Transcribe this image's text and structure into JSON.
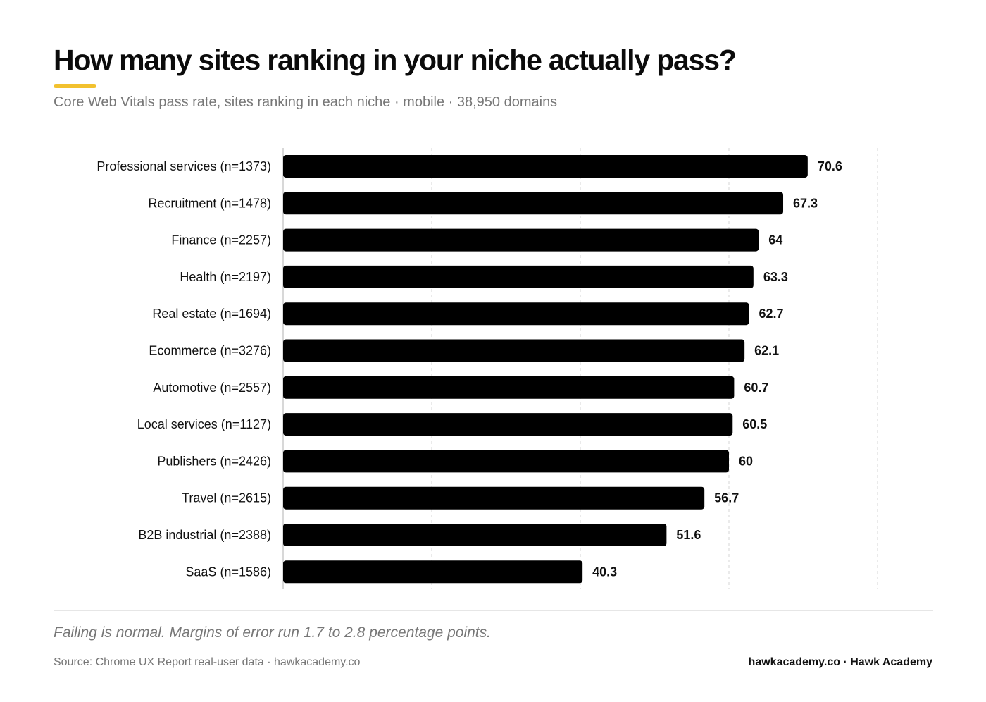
{
  "header": {
    "title": "How many sites ranking in your niche actually pass?",
    "subtitle": "Core Web Vitals pass rate, sites ranking in each niche · mobile · 38,950 domains"
  },
  "footer": {
    "note": "Failing is normal. Margins of error run 1.7 to 2.8 percentage points.",
    "source": "Source: Chrome UX Report real-user data · hawkacademy.co",
    "brand": "hawkacademy.co · Hawk Academy"
  },
  "colors": {
    "bar": "#000000",
    "accent": "#f2c12e",
    "gridline": "#d6d6d6",
    "axis": "#cccccc"
  },
  "chart_data": {
    "type": "bar",
    "orientation": "horizontal",
    "categories": [
      "Professional services (n=1373)",
      "Recruitment (n=1478)",
      "Finance (n=2257)",
      "Health (n=2197)",
      "Real estate (n=1694)",
      "Ecommerce (n=3276)",
      "Automotive (n=2557)",
      "Local services (n=1127)",
      "Publishers (n=2426)",
      "Travel (n=2615)",
      "B2B industrial (n=2388)",
      "SaaS (n=1586)"
    ],
    "values": [
      70.6,
      67.3,
      64,
      63.3,
      62.7,
      62.1,
      60.7,
      60.5,
      60,
      56.7,
      51.6,
      40.3
    ],
    "value_labels": [
      "70.6",
      "67.3",
      "64",
      "63.3",
      "62.7",
      "62.1",
      "60.7",
      "60.5",
      "60",
      "56.7",
      "51.6",
      "40.3"
    ],
    "xlim": [
      0,
      80
    ],
    "gridlines_at": [
      20,
      40,
      60,
      80
    ],
    "grid": true,
    "legend": false
  }
}
